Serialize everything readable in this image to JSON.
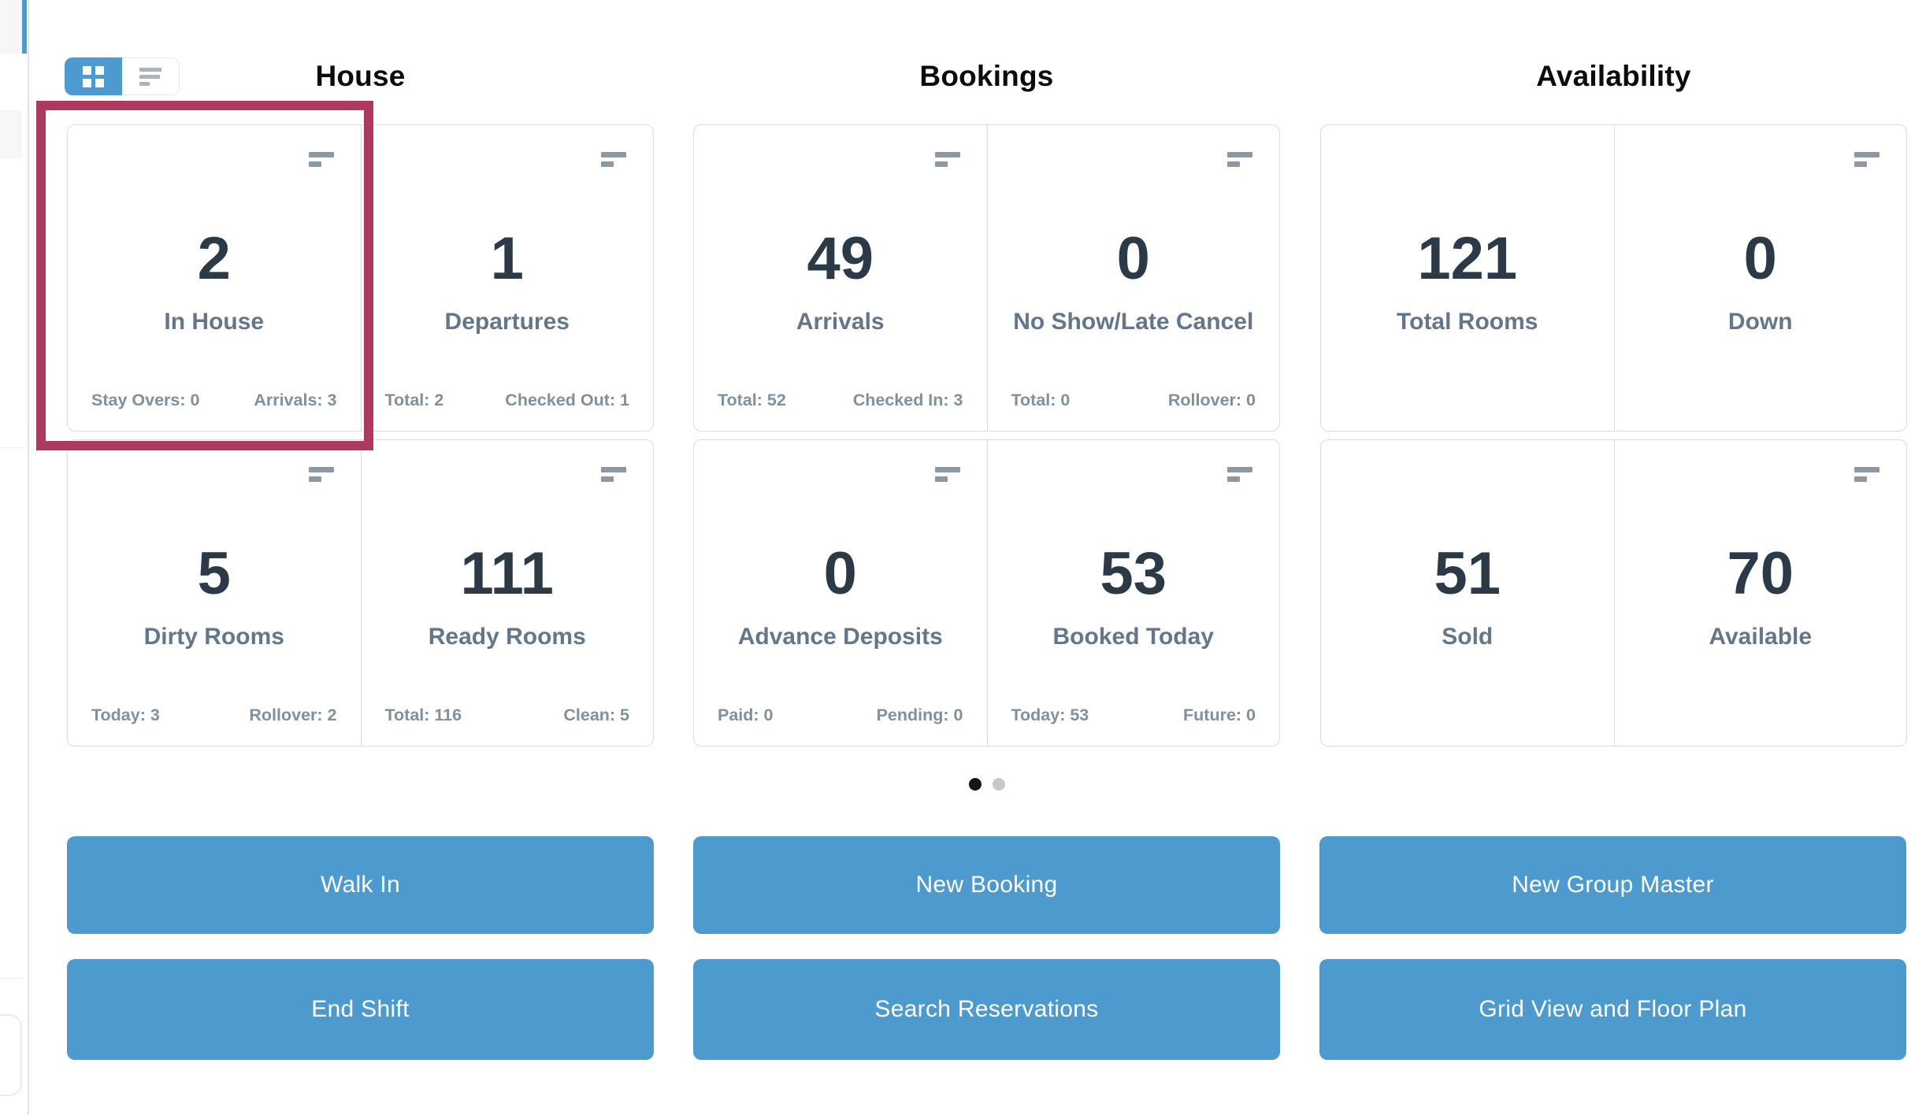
{
  "view_toggle": {
    "grid_icon": "grid-view",
    "list_icon": "list-view",
    "active": "grid"
  },
  "sections": [
    {
      "title": "House",
      "cards": [
        {
          "value": "2",
          "label": "In House",
          "stat_left": "Stay Overs: 0",
          "stat_right": "Arrivals: 3",
          "highlighted": true,
          "menu_icon": true
        },
        {
          "value": "1",
          "label": "Departures",
          "stat_left": "Total: 2",
          "stat_right": "Checked Out: 1",
          "highlighted": false,
          "menu_icon": true
        },
        {
          "value": "5",
          "label": "Dirty Rooms",
          "stat_left": "Today: 3",
          "stat_right": "Rollover: 2",
          "highlighted": false,
          "menu_icon": true
        },
        {
          "value": "111",
          "label": "Ready Rooms",
          "stat_left": "Total: 116",
          "stat_right": "Clean: 5",
          "highlighted": false,
          "menu_icon": true
        }
      ]
    },
    {
      "title": "Bookings",
      "cards": [
        {
          "value": "49",
          "label": "Arrivals",
          "stat_left": "Total: 52",
          "stat_right": "Checked In: 3",
          "highlighted": false,
          "menu_icon": true
        },
        {
          "value": "0",
          "label": "No Show/Late Cancel",
          "stat_left": "Total: 0",
          "stat_right": "Rollover: 0",
          "highlighted": false,
          "menu_icon": true
        },
        {
          "value": "0",
          "label": "Advance Deposits",
          "stat_left": "Paid: 0",
          "stat_right": "Pending: 0",
          "highlighted": false,
          "menu_icon": true
        },
        {
          "value": "53",
          "label": "Booked Today",
          "stat_left": "Today: 53",
          "stat_right": "Future: 0",
          "highlighted": false,
          "menu_icon": true
        }
      ]
    },
    {
      "title": "Availability",
      "cards": [
        {
          "value": "121",
          "label": "Total Rooms",
          "stat_left": "",
          "stat_right": "",
          "highlighted": false,
          "menu_icon": false
        },
        {
          "value": "0",
          "label": "Down",
          "stat_left": "",
          "stat_right": "",
          "highlighted": false,
          "menu_icon": true
        },
        {
          "value": "51",
          "label": "Sold",
          "stat_left": "",
          "stat_right": "",
          "highlighted": false,
          "menu_icon": false
        },
        {
          "value": "70",
          "label": "Available",
          "stat_left": "",
          "stat_right": "",
          "highlighted": false,
          "menu_icon": true
        }
      ]
    }
  ],
  "carousel": {
    "page_count": 2,
    "active_page": 1
  },
  "actions": [
    {
      "label": "Walk In"
    },
    {
      "label": "New Booking"
    },
    {
      "label": "New Group Master"
    },
    {
      "label": "End Shift"
    },
    {
      "label": "Search Reservations"
    },
    {
      "label": "Grid View and Floor Plan"
    }
  ],
  "colors": {
    "accent_blue": "#4d9ace",
    "highlight_red": "#ac3a5e",
    "number_text": "#2c3a47",
    "label_text": "#64778a",
    "stat_text": "#82909d",
    "card_border": "#d9dde1"
  }
}
